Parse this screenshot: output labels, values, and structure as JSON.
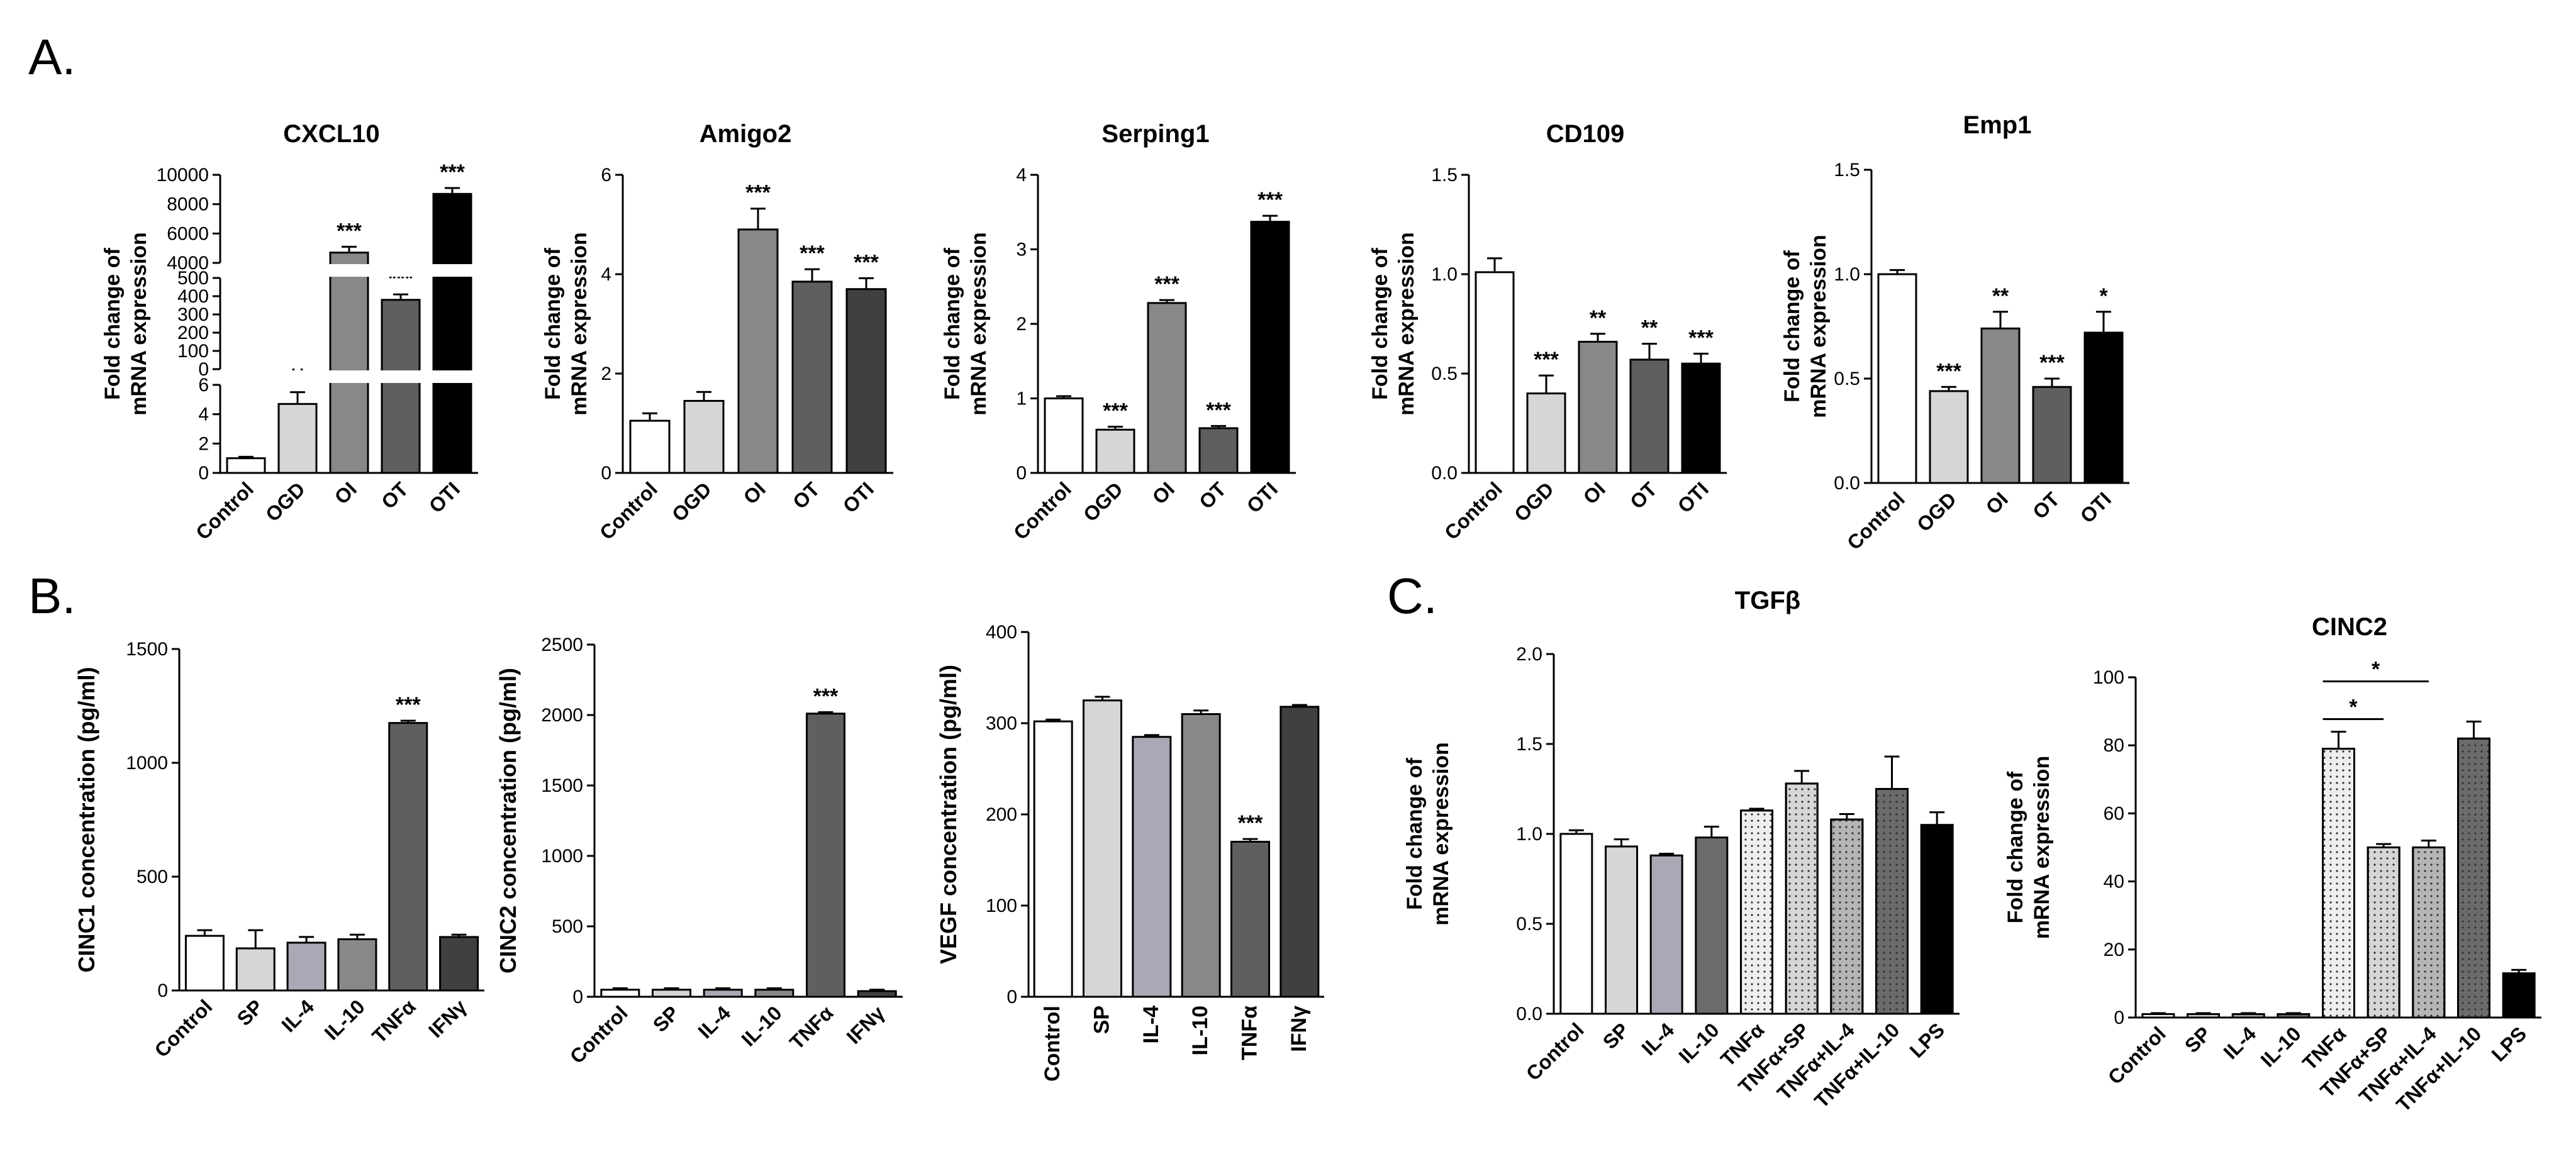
{
  "panel_labels": {
    "a": "A.",
    "b": "B.",
    "c": "C."
  },
  "colors": {
    "white": "#ffffff",
    "light": "#d6d6d6",
    "mid_light": "#a9a9b6",
    "mid": "#888888",
    "mid_dark": "#6b6b6b",
    "dark": "#5f5f5f",
    "darker": "#404040",
    "black": "#000000"
  },
  "chart_data": [
    {
      "type": "bar",
      "panel": "A",
      "title": "CXCL10",
      "broken_axis": true,
      "ylabel": [
        "Fold change of",
        "mRNA expression"
      ],
      "categories": [
        "Control",
        "OGD",
        "OI",
        "OT",
        "OTI"
      ],
      "values": [
        1,
        4.7,
        4700,
        380,
        8700
      ],
      "errors": [
        0.1,
        0.8,
        400,
        30,
        400
      ],
      "significance": [
        "",
        "**",
        "***",
        "***",
        "***"
      ],
      "fills": [
        "#ffffff",
        "#d6d6d6",
        "#888888",
        "#5f5f5f",
        "#000000"
      ],
      "segments": [
        {
          "range": [
            0,
            6
          ],
          "ticks": [
            0,
            2,
            4,
            6
          ]
        },
        {
          "range": [
            0,
            500
          ],
          "ticks": [
            0,
            100,
            200,
            300,
            400,
            500
          ]
        },
        {
          "range": [
            4000,
            10000
          ],
          "ticks": [
            4000,
            6000,
            8000,
            10000
          ]
        }
      ]
    },
    {
      "type": "bar",
      "panel": "A",
      "title": "Amigo2",
      "ylabel": [
        "Fold change of",
        "mRNA expression"
      ],
      "categories": [
        "Control",
        "OGD",
        "OI",
        "OT",
        "OTI"
      ],
      "values": [
        1.05,
        1.45,
        4.9,
        3.85,
        3.7
      ],
      "errors": [
        0.15,
        0.18,
        0.42,
        0.25,
        0.22
      ],
      "significance": [
        "",
        "",
        "***",
        "***",
        "***"
      ],
      "fills": [
        "#ffffff",
        "#d6d6d6",
        "#888888",
        "#5f5f5f",
        "#404040"
      ],
      "ylim": [
        0,
        6
      ],
      "yticks": [
        0,
        2,
        4,
        6
      ]
    },
    {
      "type": "bar",
      "panel": "A",
      "title": "Serping1",
      "ylabel": [
        "Fold change of",
        "mRNA expression"
      ],
      "categories": [
        "Control",
        "OGD",
        "OI",
        "OT",
        "OTI"
      ],
      "values": [
        1.0,
        0.58,
        2.28,
        0.6,
        3.37
      ],
      "errors": [
        0.03,
        0.04,
        0.04,
        0.03,
        0.08
      ],
      "significance": [
        "",
        "***",
        "***",
        "***",
        "***"
      ],
      "fills": [
        "#ffffff",
        "#d6d6d6",
        "#888888",
        "#5f5f5f",
        "#000000"
      ],
      "ylim": [
        0,
        4
      ],
      "yticks": [
        0,
        1,
        2,
        3,
        4
      ]
    },
    {
      "type": "bar",
      "panel": "A",
      "title": "CD109",
      "ylabel": [
        "Fold change of",
        "mRNA expression"
      ],
      "categories": [
        "Control",
        "OGD",
        "OI",
        "OT",
        "OTI"
      ],
      "values": [
        1.01,
        0.4,
        0.66,
        0.57,
        0.55
      ],
      "errors": [
        0.07,
        0.09,
        0.04,
        0.08,
        0.05
      ],
      "significance": [
        "",
        "***",
        "**",
        "**",
        "***"
      ],
      "fills": [
        "#ffffff",
        "#d6d6d6",
        "#888888",
        "#5f5f5f",
        "#000000"
      ],
      "ylim": [
        0,
        1.5
      ],
      "yticks": [
        "0.0",
        "0.5",
        "1.0",
        "1.5"
      ]
    },
    {
      "type": "bar",
      "panel": "A",
      "title": "Emp1",
      "ylabel": [
        "Fold change of",
        "mRNA expression"
      ],
      "categories": [
        "Control",
        "OGD",
        "OI",
        "OT",
        "OTI"
      ],
      "values": [
        1.0,
        0.44,
        0.74,
        0.46,
        0.72
      ],
      "errors": [
        0.02,
        0.02,
        0.08,
        0.04,
        0.1
      ],
      "significance": [
        "",
        "***",
        "**",
        "***",
        "*"
      ],
      "fills": [
        "#ffffff",
        "#d6d6d6",
        "#888888",
        "#5f5f5f",
        "#000000"
      ],
      "ylim": [
        0,
        1.5
      ],
      "yticks": [
        "0.0",
        "0.5",
        "1.0",
        "1.5"
      ]
    },
    {
      "type": "bar",
      "panel": "B",
      "ylabel": [
        "CINC1 concentration (pg/ml)"
      ],
      "categories": [
        "Control",
        "SP",
        "IL-4",
        "IL-10",
        "TNFα",
        "IFNγ"
      ],
      "values": [
        240,
        185,
        210,
        225,
        1175,
        235
      ],
      "errors": [
        25,
        80,
        25,
        20,
        10,
        10
      ],
      "significance": [
        "",
        "",
        "",
        "",
        "***",
        ""
      ],
      "fills": [
        "#ffffff",
        "#d6d6d6",
        "#a9a9b6",
        "#888888",
        "#5f5f5f",
        "#404040"
      ],
      "ylim": [
        0,
        1500
      ],
      "yticks": [
        0,
        500,
        1000,
        1500
      ]
    },
    {
      "type": "bar",
      "panel": "B",
      "ylabel": [
        "CINC2 concentration (pg/ml)"
      ],
      "categories": [
        "Control",
        "SP",
        "IL-4",
        "IL-10",
        "TNFα",
        "IFNγ"
      ],
      "values": [
        50,
        50,
        50,
        50,
        2010,
        40
      ],
      "errors": [
        10,
        10,
        10,
        10,
        10,
        10
      ],
      "significance": [
        "",
        "",
        "",
        "",
        "***",
        ""
      ],
      "fills": [
        "#ffffff",
        "#d6d6d6",
        "#a9a9b6",
        "#888888",
        "#5f5f5f",
        "#404040"
      ],
      "ylim": [
        0,
        2500
      ],
      "yticks": [
        0,
        500,
        1000,
        1500,
        2000,
        2500
      ]
    },
    {
      "type": "bar",
      "panel": "B",
      "ylabel": [
        "VEGF concentration (pg/ml)"
      ],
      "categories": [
        "Control",
        "SP",
        "IL-4",
        "IL-10",
        "TNFα",
        "IFNγ"
      ],
      "values": [
        302,
        325,
        285,
        310,
        170,
        318
      ],
      "errors": [
        2,
        4,
        2,
        4,
        3,
        2
      ],
      "significance": [
        "",
        "",
        "",
        "",
        "***",
        ""
      ],
      "fills": [
        "#ffffff",
        "#d6d6d6",
        "#a9a9b6",
        "#888888",
        "#5f5f5f",
        "#404040"
      ],
      "ylim": [
        0,
        400
      ],
      "yticks": [
        0,
        100,
        200,
        300,
        400
      ]
    },
    {
      "type": "bar",
      "panel": "C",
      "title": "TGFβ",
      "ylabel": [
        "Fold change of",
        "mRNA expression"
      ],
      "categories": [
        "Control",
        "SP",
        "IL-4",
        "IL-10",
        "TNFα",
        "TNFα+SP",
        "TNFα+IL-4",
        "TNFα+IL-10",
        "LPS"
      ],
      "values": [
        1.0,
        0.93,
        0.88,
        0.98,
        1.13,
        1.28,
        1.08,
        1.25,
        1.05
      ],
      "errors": [
        0.02,
        0.04,
        0.01,
        0.06,
        0.01,
        0.07,
        0.03,
        0.18,
        0.07
      ],
      "significance": [
        "",
        "",
        "",
        "",
        "",
        "",
        "",
        "",
        ""
      ],
      "fills": [
        "#ffffff",
        "#d6d6d6",
        "#a9a9b6",
        "#6b6b6b",
        "#eeeeee",
        "#d6d6d6",
        "#b5b5b5",
        "#6b6b6b",
        "#000000"
      ],
      "patterns": [
        "",
        "",
        "",
        "",
        "dots",
        "dots",
        "dots",
        "dots",
        ""
      ],
      "ylim": [
        0,
        2.0
      ],
      "yticks": [
        "0.0",
        "0.5",
        "1.0",
        "1.5",
        "2.0"
      ]
    },
    {
      "type": "bar",
      "panel": "C",
      "title": "CINC2",
      "ylabel": [
        "Fold change of",
        "mRNA expression"
      ],
      "categories": [
        "Control",
        "SP",
        "IL-4",
        "IL-10",
        "TNFα",
        "TNFα+SP",
        "TNFα+IL-4",
        "TNFα+IL-10",
        "LPS"
      ],
      "values": [
        1,
        1,
        1,
        1,
        79,
        50,
        50,
        82,
        13
      ],
      "errors": [
        0.3,
        0.3,
        0.3,
        0.3,
        5,
        1,
        2,
        5,
        1
      ],
      "significance": [
        "",
        "",
        "",
        "",
        "",
        "",
        "",
        "",
        ""
      ],
      "fills": [
        "#ffffff",
        "#d6d6d6",
        "#a9a9b6",
        "#6b6b6b",
        "#eeeeee",
        "#d6d6d6",
        "#b5b5b5",
        "#6b6b6b",
        "#000000"
      ],
      "patterns": [
        "",
        "",
        "",
        "",
        "dots",
        "dots",
        "dots",
        "dots",
        ""
      ],
      "brackets": [
        {
          "from": 4,
          "to": 5,
          "label": "*"
        },
        {
          "from": 4,
          "to": 6,
          "label": "*"
        }
      ],
      "ylim": [
        0,
        100
      ],
      "yticks": [
        0,
        20,
        40,
        60,
        80,
        100
      ]
    }
  ]
}
